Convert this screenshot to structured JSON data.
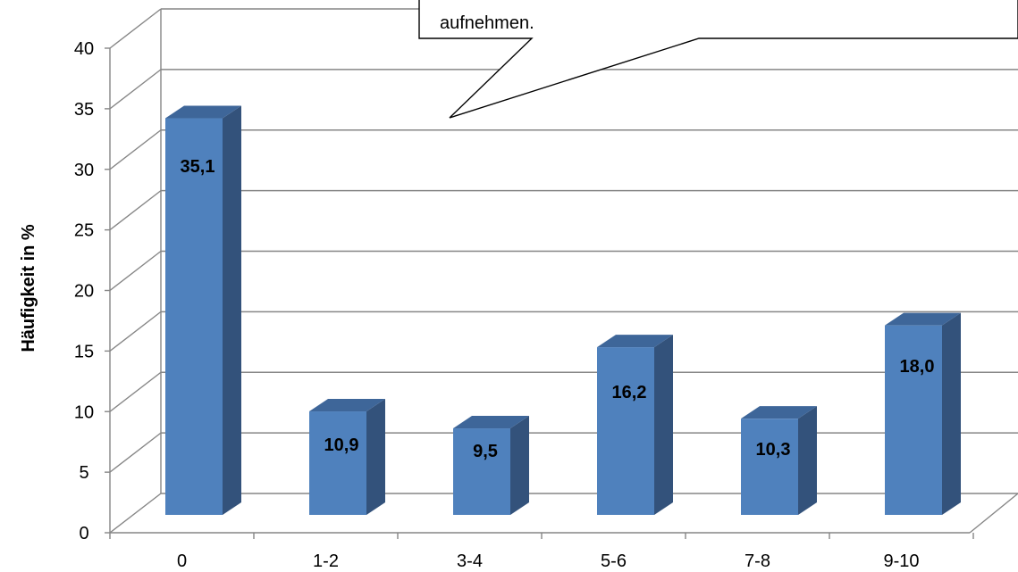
{
  "colors": {
    "bar_front": "#4F81BD",
    "bar_side": "#33527B",
    "bar_top": "#3E6699",
    "grid": "#868686",
    "axis": "#868686",
    "text": "#000000"
  },
  "chart_data": {
    "type": "bar",
    "style": "3d-clustered-column",
    "categories": [
      "0",
      "1-2",
      "3-4",
      "5-6",
      "7-8",
      "9-10"
    ],
    "values": [
      35.1,
      10.9,
      9.5,
      16.2,
      10.3,
      18.0
    ],
    "data_labels": [
      "35,1",
      "10,9",
      "9,5",
      "16,2",
      "10,3",
      "18,0"
    ],
    "title": "",
    "xlabel": "",
    "ylabel": "Häufigkeit in %",
    "ylim": [
      0,
      40
    ],
    "y_ticks": [
      0,
      5,
      10,
      15,
      20,
      25,
      30,
      35,
      40
    ],
    "grid": true,
    "legend": "none"
  },
  "callout": {
    "lines": [
      "aufnehmen."
    ]
  }
}
